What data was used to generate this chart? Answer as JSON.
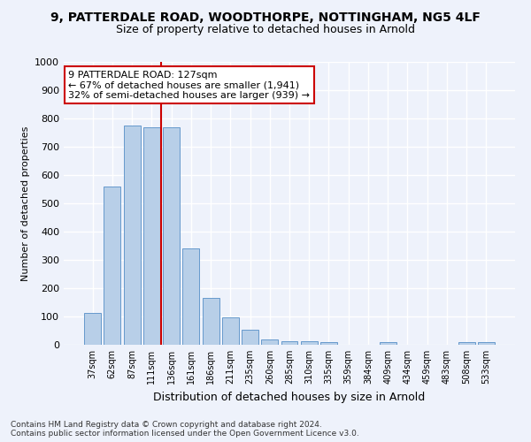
{
  "title_line1": "9, PATTERDALE ROAD, WOODTHORPE, NOTTINGHAM, NG5 4LF",
  "title_line2": "Size of property relative to detached houses in Arnold",
  "xlabel": "Distribution of detached houses by size in Arnold",
  "ylabel": "Number of detached properties",
  "categories": [
    "37sqm",
    "62sqm",
    "87sqm",
    "111sqm",
    "136sqm",
    "161sqm",
    "186sqm",
    "211sqm",
    "235sqm",
    "260sqm",
    "285sqm",
    "310sqm",
    "335sqm",
    "359sqm",
    "384sqm",
    "409sqm",
    "434sqm",
    "459sqm",
    "483sqm",
    "508sqm",
    "533sqm"
  ],
  "values": [
    113,
    558,
    775,
    770,
    770,
    342,
    165,
    98,
    53,
    18,
    13,
    13,
    8,
    0,
    0,
    8,
    0,
    0,
    0,
    8,
    8
  ],
  "bar_color": "#b8cfe8",
  "bar_edge_color": "#6699cc",
  "vline_x": 3.5,
  "vline_color": "#cc0000",
  "annotation_text": "9 PATTERDALE ROAD: 127sqm\n← 67% of detached houses are smaller (1,941)\n32% of semi-detached houses are larger (939) →",
  "annotation_box_color": "#ffffff",
  "annotation_box_edge": "#cc0000",
  "ylim": [
    0,
    1000
  ],
  "yticks": [
    0,
    100,
    200,
    300,
    400,
    500,
    600,
    700,
    800,
    900,
    1000
  ],
  "footnote": "Contains HM Land Registry data © Crown copyright and database right 2024.\nContains public sector information licensed under the Open Government Licence v3.0.",
  "bg_color": "#eef2fb",
  "grid_color": "#ffffff"
}
